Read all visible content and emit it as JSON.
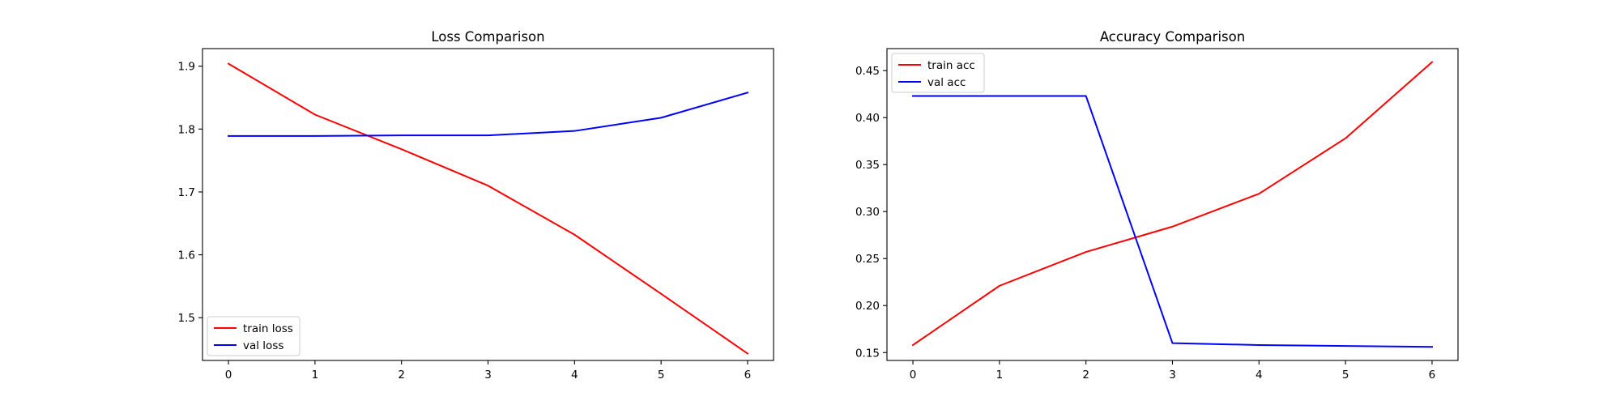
{
  "chart_data": [
    {
      "type": "line",
      "title": "Loss Comparison",
      "xlabel": "",
      "ylabel": "",
      "x": [
        0,
        1,
        2,
        3,
        4,
        5,
        6
      ],
      "xlim": [
        -0.3,
        6.3
      ],
      "ylim": [
        1.432,
        1.928
      ],
      "xticks": [
        0,
        1,
        2,
        3,
        4,
        5,
        6
      ],
      "yticks": [
        1.5,
        1.6,
        1.7,
        1.8,
        1.9
      ],
      "grid": false,
      "legend_position": "lower left",
      "series": [
        {
          "name": "train loss",
          "color": "#ff0000",
          "values": [
            1.904,
            1.823,
            1.768,
            1.71,
            1.632,
            1.538,
            1.443
          ]
        },
        {
          "name": "val loss",
          "color": "#0000ff",
          "values": [
            1.789,
            1.789,
            1.79,
            1.79,
            1.797,
            1.818,
            1.858
          ]
        }
      ]
    },
    {
      "type": "line",
      "title": "Accuracy Comparison",
      "xlabel": "",
      "ylabel": "",
      "x": [
        0,
        1,
        2,
        3,
        4,
        5,
        6
      ],
      "xlim": [
        -0.3,
        6.3
      ],
      "ylim": [
        0.1416,
        0.4734
      ],
      "xticks": [
        0,
        1,
        2,
        3,
        4,
        5,
        6
      ],
      "yticks": [
        0.15,
        0.2,
        0.25,
        0.3,
        0.35,
        0.4,
        0.45
      ],
      "grid": false,
      "legend_position": "upper left",
      "series": [
        {
          "name": "train acc",
          "color": "#ff0000",
          "values": [
            0.158,
            0.221,
            0.257,
            0.284,
            0.319,
            0.378,
            0.459
          ]
        },
        {
          "name": "val acc",
          "color": "#0000ff",
          "values": [
            0.423,
            0.423,
            0.423,
            0.16,
            0.158,
            0.157,
            0.156
          ]
        }
      ]
    }
  ]
}
